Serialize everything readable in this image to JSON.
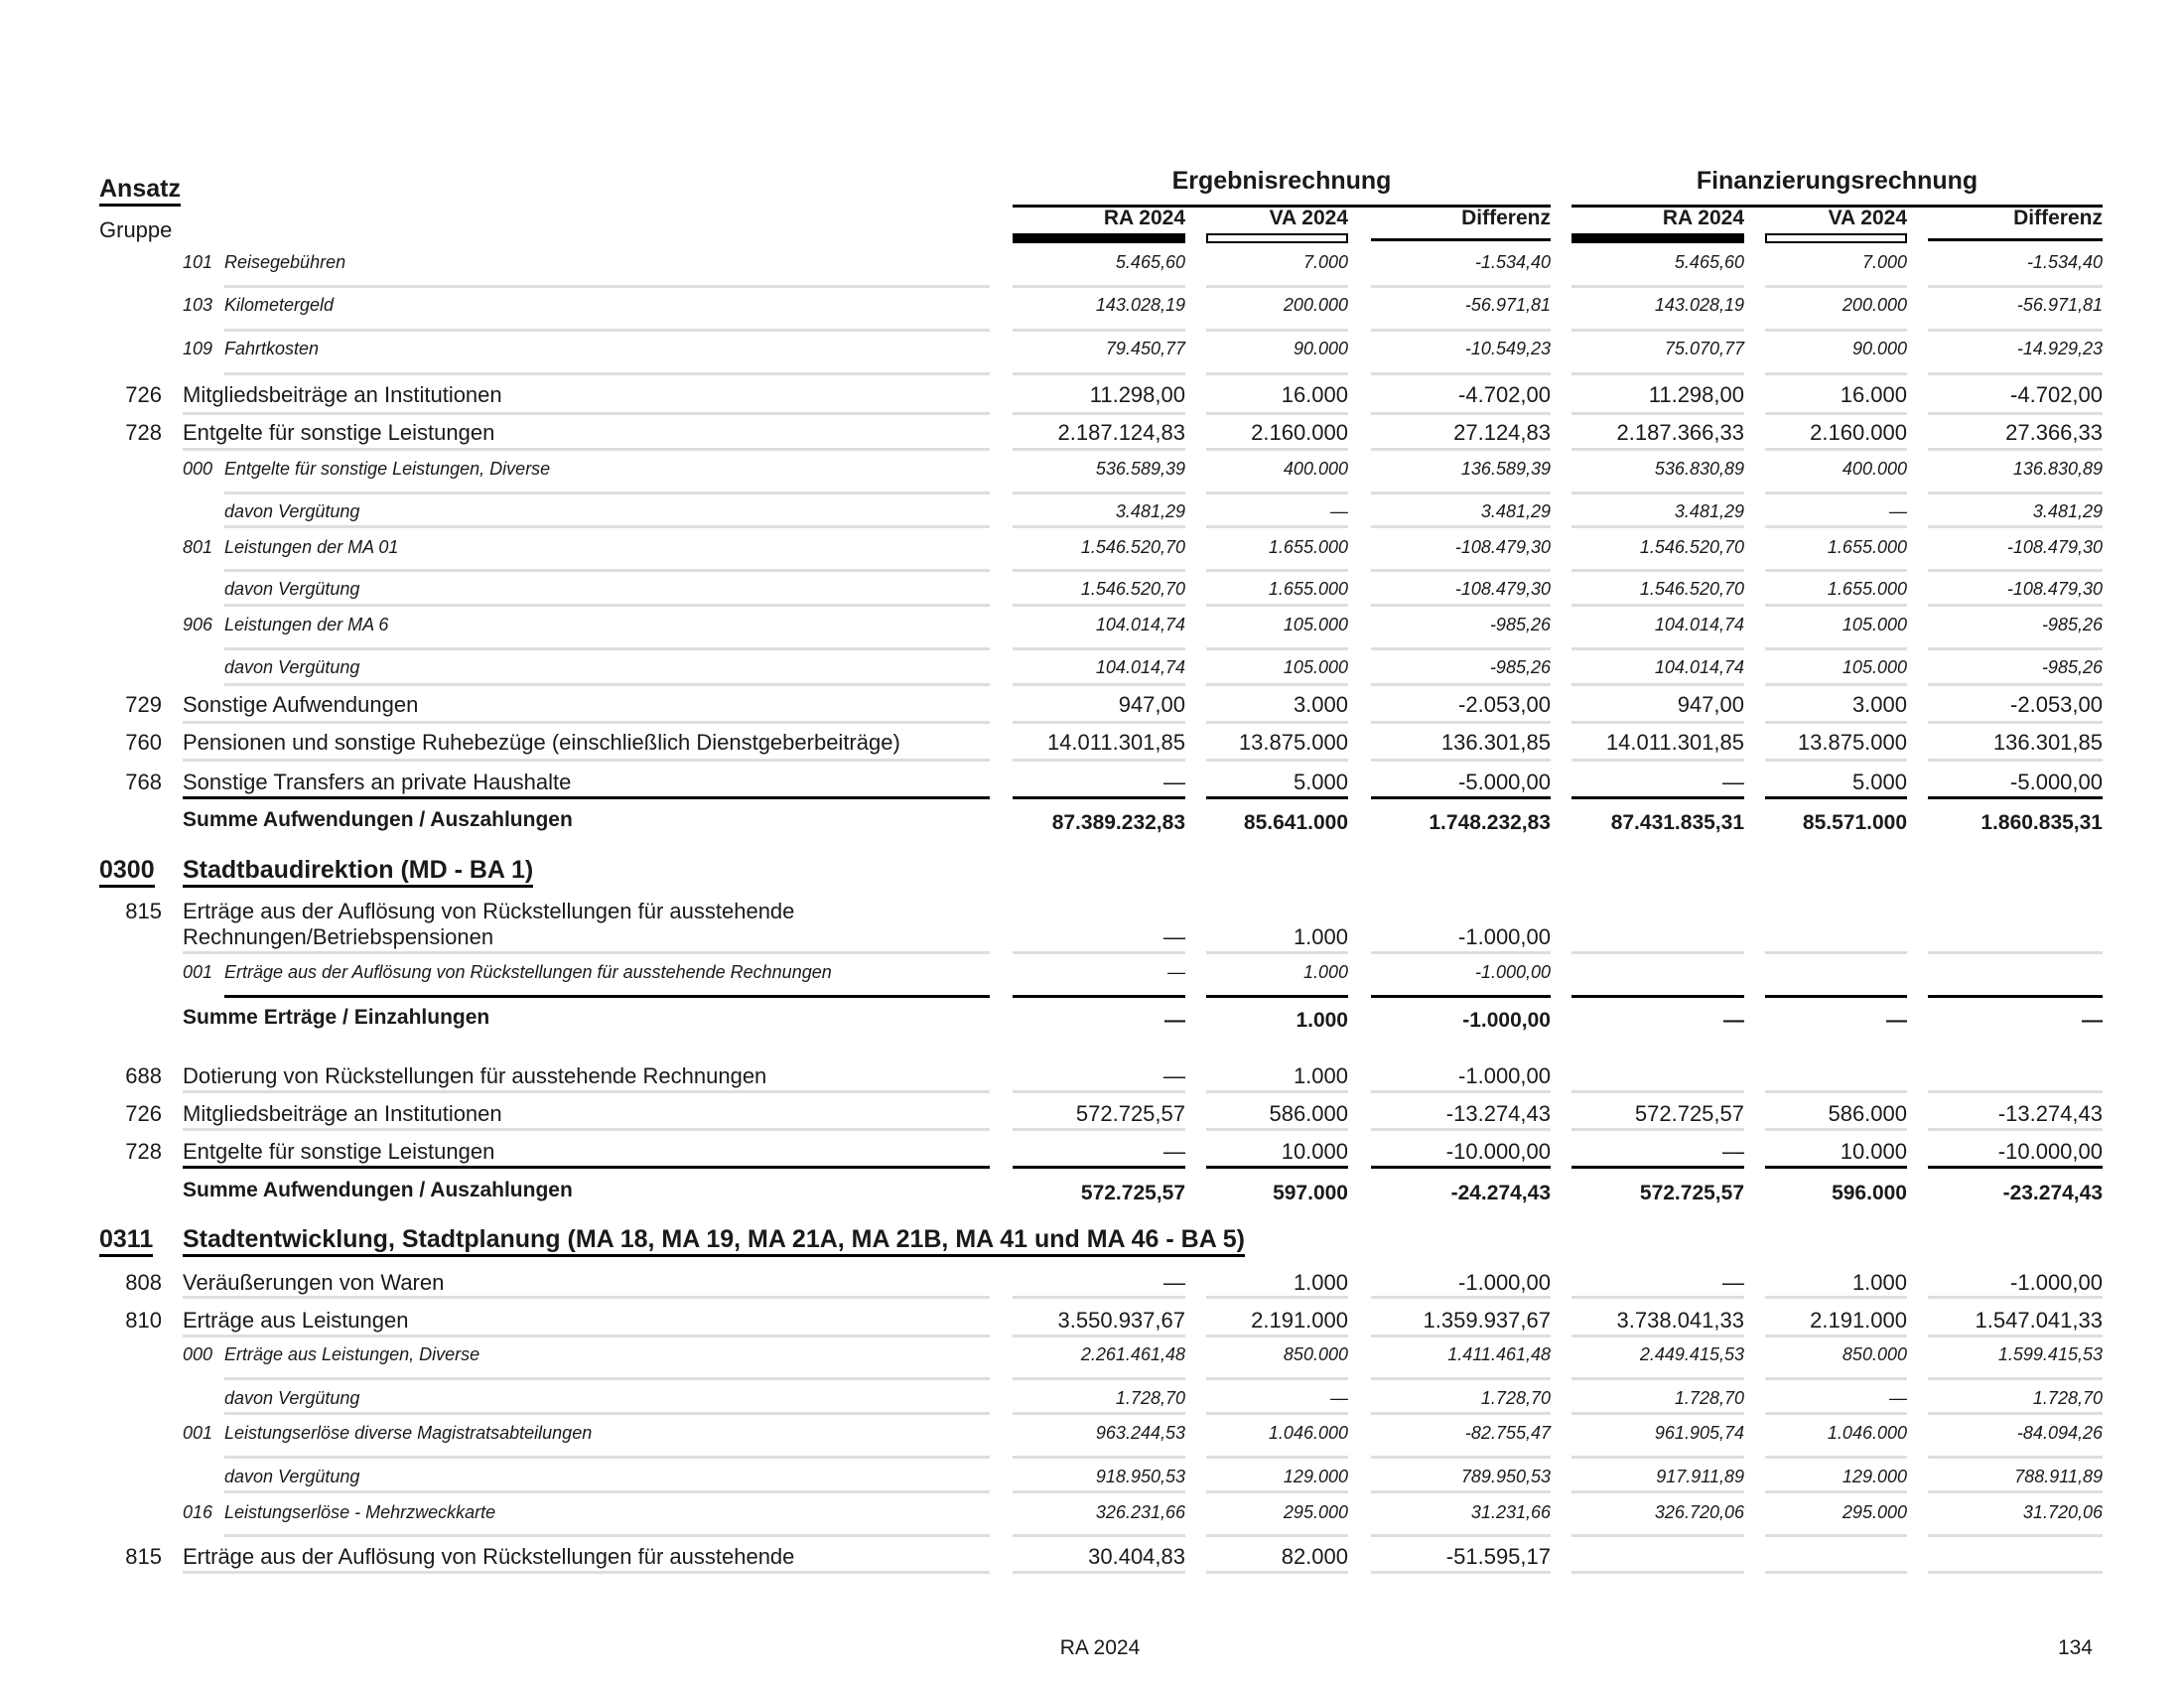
{
  "header": {
    "ansatz_label": "Ansatz",
    "gruppe_label": "Gruppe",
    "groups": [
      {
        "title": "Ergebnisrechnung",
        "columns": [
          "RA 2024",
          "VA 2024",
          "Differenz"
        ]
      },
      {
        "title": "Finanzierungsrechnung",
        "columns": [
          "RA 2024",
          "VA 2024",
          "Differenz"
        ]
      }
    ]
  },
  "rows": [
    {
      "type": "sub",
      "code": "101",
      "label": "Reisegebühren",
      "values": [
        "5.465,60",
        "7.000",
        "-1.534,40",
        "5.465,60",
        "7.000",
        "-1.534,40"
      ]
    },
    {
      "type": "sub",
      "code": "103",
      "label": "Kilometergeld",
      "values": [
        "143.028,19",
        "200.000",
        "-56.971,81",
        "143.028,19",
        "200.000",
        "-56.971,81"
      ]
    },
    {
      "type": "sub",
      "code": "109",
      "label": "Fahrtkosten",
      "values": [
        "79.450,77",
        "90.000",
        "-10.549,23",
        "75.070,77",
        "90.000",
        "-14.929,23"
      ]
    },
    {
      "type": "main",
      "code": "726",
      "label": "Mitgliedsbeiträge an Institutionen",
      "values": [
        "11.298,00",
        "16.000",
        "-4.702,00",
        "11.298,00",
        "16.000",
        "-4.702,00"
      ]
    },
    {
      "type": "main",
      "code": "728",
      "label": "Entgelte für sonstige Leistungen",
      "values": [
        "2.187.124,83",
        "2.160.000",
        "27.124,83",
        "2.187.366,33",
        "2.160.000",
        "27.366,33"
      ]
    },
    {
      "type": "sub",
      "code": "000",
      "label": "Entgelte für sonstige Leistungen, Diverse",
      "values": [
        "536.589,39",
        "400.000",
        "136.589,39",
        "536.830,89",
        "400.000",
        "136.830,89"
      ]
    },
    {
      "type": "davon",
      "code": "",
      "label": "davon Vergütung",
      "values": [
        "3.481,29",
        "—",
        "3.481,29",
        "3.481,29",
        "—",
        "3.481,29"
      ]
    },
    {
      "type": "sub",
      "code": "801",
      "label": "Leistungen der MA 01",
      "values": [
        "1.546.520,70",
        "1.655.000",
        "-108.479,30",
        "1.546.520,70",
        "1.655.000",
        "-108.479,30"
      ]
    },
    {
      "type": "davon",
      "code": "",
      "label": "davon Vergütung",
      "values": [
        "1.546.520,70",
        "1.655.000",
        "-108.479,30",
        "1.546.520,70",
        "1.655.000",
        "-108.479,30"
      ]
    },
    {
      "type": "sub",
      "code": "906",
      "label": "Leistungen der MA 6",
      "values": [
        "104.014,74",
        "105.000",
        "-985,26",
        "104.014,74",
        "105.000",
        "-985,26"
      ]
    },
    {
      "type": "davon",
      "code": "",
      "label": "davon Vergütung",
      "values": [
        "104.014,74",
        "105.000",
        "-985,26",
        "104.014,74",
        "105.000",
        "-985,26"
      ]
    },
    {
      "type": "main",
      "code": "729",
      "label": "Sonstige Aufwendungen",
      "values": [
        "947,00",
        "3.000",
        "-2.053,00",
        "947,00",
        "3.000",
        "-2.053,00"
      ]
    },
    {
      "type": "main",
      "code": "760",
      "label": "Pensionen und sonstige Ruhebezüge (einschließlich Dienstgeberbeiträge)",
      "values": [
        "14.011.301,85",
        "13.875.000",
        "136.301,85",
        "14.011.301,85",
        "13.875.000",
        "136.301,85"
      ]
    },
    {
      "type": "main",
      "code": "768",
      "label": "Sonstige Transfers an private Haushalte",
      "values": [
        "—",
        "5.000",
        "-5.000,00",
        "—",
        "5.000",
        "-5.000,00"
      ]
    },
    {
      "type": "sum",
      "code": "",
      "label": "Summe Aufwendungen / Auszahlungen",
      "values": [
        "87.389.232,83",
        "85.641.000",
        "1.748.232,83",
        "87.431.835,31",
        "85.571.000",
        "1.860.835,31"
      ]
    },
    {
      "type": "section",
      "code": "0300",
      "label": "Stadtbaudirektion (MD - BA 1)",
      "values": []
    },
    {
      "type": "main",
      "code": "815",
      "label": "Erträge aus der Auflösung von Rückstellungen für ausstehende",
      "label2": "Rechnungen/Betriebspensionen",
      "values": [
        "—",
        "1.000",
        "-1.000,00",
        "",
        "",
        ""
      ]
    },
    {
      "type": "sub",
      "code": "001",
      "label": "Erträge aus der Auflösung von Rückstellungen für ausstehende Rechnungen",
      "values": [
        "—",
        "1.000",
        "-1.000,00",
        "",
        "",
        ""
      ]
    },
    {
      "type": "sum",
      "code": "",
      "label": "Summe Erträge / Einzahlungen",
      "values": [
        "—",
        "1.000",
        "-1.000,00",
        "—",
        "—",
        "—"
      ]
    },
    {
      "type": "main",
      "code": "688",
      "label": "Dotierung von Rückstellungen für ausstehende Rechnungen",
      "values": [
        "—",
        "1.000",
        "-1.000,00",
        "",
        "",
        ""
      ]
    },
    {
      "type": "main",
      "code": "726",
      "label": "Mitgliedsbeiträge an Institutionen",
      "values": [
        "572.725,57",
        "586.000",
        "-13.274,43",
        "572.725,57",
        "586.000",
        "-13.274,43"
      ]
    },
    {
      "type": "main",
      "code": "728",
      "label": "Entgelte für sonstige Leistungen",
      "values": [
        "—",
        "10.000",
        "-10.000,00",
        "—",
        "10.000",
        "-10.000,00"
      ]
    },
    {
      "type": "sum",
      "code": "",
      "label": "Summe Aufwendungen / Auszahlungen",
      "values": [
        "572.725,57",
        "597.000",
        "-24.274,43",
        "572.725,57",
        "596.000",
        "-23.274,43"
      ]
    },
    {
      "type": "section",
      "code": "0311",
      "label": "Stadtentwicklung, Stadtplanung (MA 18, MA 19, MA 21A, MA 21B, MA 41 und MA 46 - BA 5)",
      "values": []
    },
    {
      "type": "main",
      "code": "808",
      "label": "Veräußerungen von Waren",
      "values": [
        "—",
        "1.000",
        "-1.000,00",
        "—",
        "1.000",
        "-1.000,00"
      ]
    },
    {
      "type": "main",
      "code": "810",
      "label": "Erträge aus Leistungen",
      "values": [
        "3.550.937,67",
        "2.191.000",
        "1.359.937,67",
        "3.738.041,33",
        "2.191.000",
        "1.547.041,33"
      ]
    },
    {
      "type": "sub",
      "code": "000",
      "label": "Erträge aus Leistungen, Diverse",
      "values": [
        "2.261.461,48",
        "850.000",
        "1.411.461,48",
        "2.449.415,53",
        "850.000",
        "1.599.415,53"
      ]
    },
    {
      "type": "davon",
      "code": "",
      "label": "davon Vergütung",
      "values": [
        "1.728,70",
        "—",
        "1.728,70",
        "1.728,70",
        "—",
        "1.728,70"
      ]
    },
    {
      "type": "sub",
      "code": "001",
      "label": "Leistungserlöse diverse Magistratsabteilungen",
      "values": [
        "963.244,53",
        "1.046.000",
        "-82.755,47",
        "961.905,74",
        "1.046.000",
        "-84.094,26"
      ]
    },
    {
      "type": "davon",
      "code": "",
      "label": "davon Vergütung",
      "values": [
        "918.950,53",
        "129.000",
        "789.950,53",
        "917.911,89",
        "129.000",
        "788.911,89"
      ]
    },
    {
      "type": "sub",
      "code": "016",
      "label": "Leistungserlöse - Mehrzweckkarte",
      "values": [
        "326.231,66",
        "295.000",
        "31.231,66",
        "326.720,06",
        "295.000",
        "31.720,06"
      ]
    },
    {
      "type": "main",
      "code": "815",
      "label": "Erträge aus der Auflösung von Rückstellungen für ausstehende",
      "values": [
        "30.404,83",
        "82.000",
        "-51.595,17",
        "",
        "",
        ""
      ]
    }
  ],
  "footer": {
    "center": "RA 2024",
    "page": "134"
  }
}
